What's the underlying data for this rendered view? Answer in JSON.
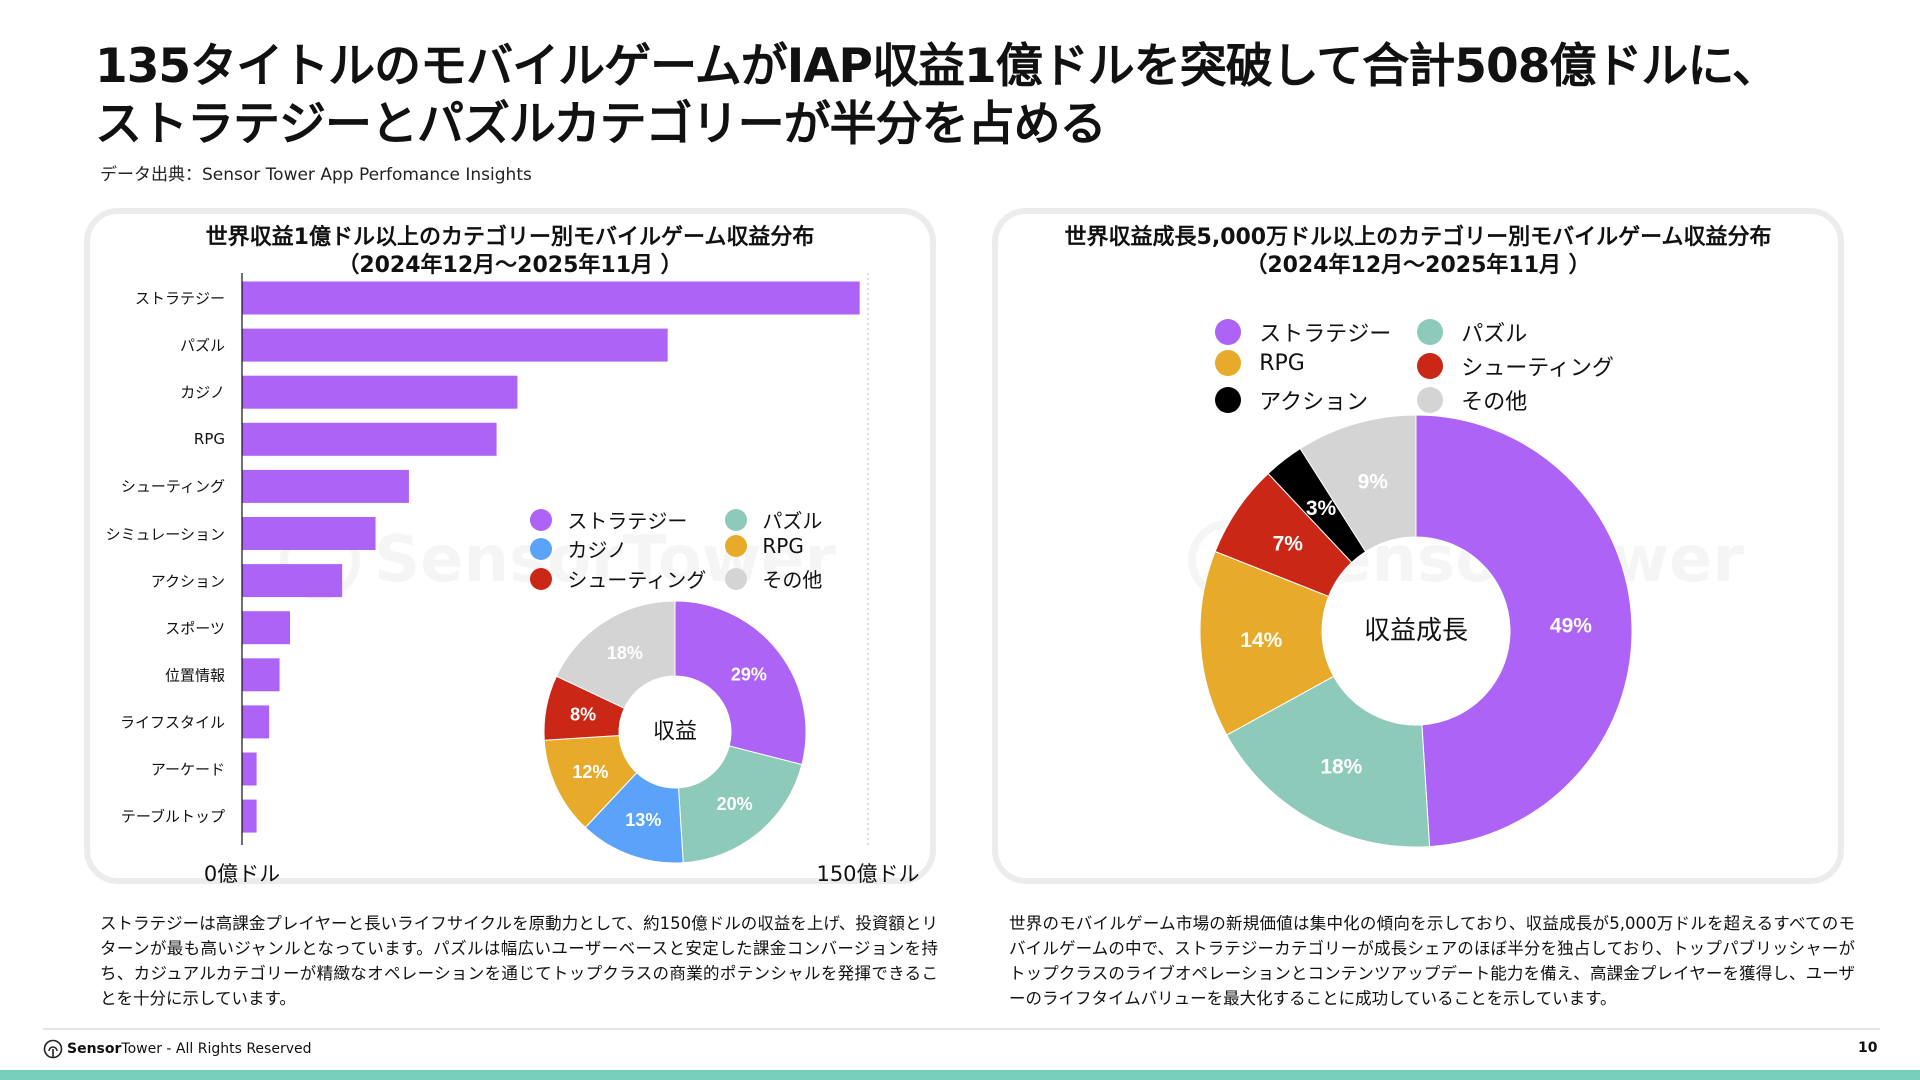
{
  "header": {
    "title_line1": "135タイトルのモバイルゲームがIAP収益1億ドルを突破して合計508億ドルに、",
    "title_line2": "ストラテジーとパズルカテゴリーが半分を占める",
    "source": "データ出典：Sensor Tower App Perfomance Insights"
  },
  "watermark": "SensorTower",
  "chart_data": [
    {
      "type": "bar",
      "orientation": "horizontal",
      "title": "世界収益1億ドル以上のカテゴリー別モバイルゲーム収益分布",
      "subtitle": "（2024年12月～2025年11月 ）",
      "categories": [
        "ストラテジー",
        "パズル",
        "カジノ",
        "RPG",
        "シューティング",
        "シミュレーション",
        "アクション",
        "スポーツ",
        "位置情報",
        "ライフスタイル",
        "アーケード",
        "テーブルトップ"
      ],
      "values": [
        148,
        102,
        66,
        61,
        40,
        32,
        24,
        11.5,
        9,
        6.5,
        3.5,
        3.5
      ],
      "unit": "億ドル",
      "xlim": [
        0,
        150
      ],
      "x_tick_labels": [
        "0億ドル",
        "150億ドル"
      ],
      "color": "#ad63f6",
      "grid": false
    },
    {
      "type": "pie",
      "donut": true,
      "center_label": "収益",
      "categories": [
        "ストラテジー",
        "パズル",
        "カジノ",
        "RPG",
        "シューティング",
        "その他"
      ],
      "values": [
        29,
        20,
        13,
        12,
        8,
        18
      ],
      "labels": [
        "29%",
        "20%",
        "13%",
        "12%",
        "8%",
        "18%"
      ],
      "colors": [
        "#ad63f6",
        "#8ecab9",
        "#5ba3fa",
        "#e8aa2a",
        "#cb2716",
        "#d4d4d4"
      ],
      "legend_order": [
        "ストラテジー",
        "パズル",
        "カジノ",
        "RPG",
        "シューティング",
        "その他"
      ],
      "legend_placement": "top"
    },
    {
      "type": "pie",
      "donut": true,
      "title": "世界収益成長5,000万ドル以上のカテゴリー別モバイルゲーム収益分布",
      "subtitle": "（2024年12月～2025年11月 ）",
      "center_label": "収益成長",
      "categories": [
        "ストラテジー",
        "パズル",
        "RPG",
        "シューティング",
        "アクション",
        "その他"
      ],
      "values": [
        49,
        18,
        14,
        7,
        3,
        9
      ],
      "labels": [
        "49%",
        "18%",
        "14%",
        "7%",
        "3%",
        "9%"
      ],
      "colors": [
        "#ad63f6",
        "#8ecab9",
        "#e8aa2a",
        "#cb2716",
        "#000000",
        "#d4d4d4"
      ],
      "legend_order": [
        "ストラテジー",
        "パズル",
        "RPG",
        "シューティング",
        "アクション",
        "その他"
      ],
      "legend_placement": "top"
    }
  ],
  "text": {
    "left": "ストラテジーは高課金プレイヤーと長いライフサイクルを原動力として、約150億ドルの収益を上げ、投資額とリターンが最も高いジャンルとなっています。パズルは幅広いユーザーベースと安定した課金コンバージョンを持ち、カジュアルカテゴリーが精緻なオペレーションを通じてトップクラスの商業的ポテンシャルを発揮できることを十分に示しています。",
    "right": "世界のモバイルゲーム市場の新規価値は集中化の傾向を示しており、収益成長が5,000万ドルを超えるすべてのモバイルゲームの中で、ストラテジーカテゴリーが成長シェアのほぼ半分を独占しており、トップパブリッシャーがトップクラスのライブオペレーションとコンテンツアップデート能力を備え、高課金プレイヤーを獲得し、ユーザーのライフタイムバリューを最大化することに成功していることを示しています。"
  },
  "footer": {
    "brand_bold": "Sensor",
    "brand": "Tower",
    "rights": " - All Rights Reserved",
    "page_number": "10"
  }
}
